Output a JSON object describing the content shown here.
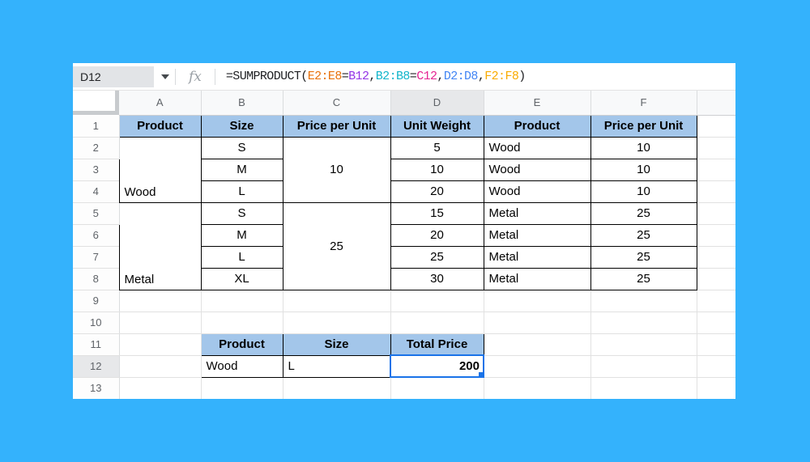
{
  "formula_bar": {
    "name_box_value": "D12",
    "fx_label": "fx",
    "formula_full": "=SUMPRODUCT(E2:E8=B12,B2:B8=C12,D2:D8,F2:F8)",
    "formula_parts": [
      {
        "text": "=SUMPRODUCT(",
        "color": "#202124"
      },
      {
        "text": "E2:E8",
        "color": "#E8710A"
      },
      {
        "text": "=",
        "color": "#202124"
      },
      {
        "text": "B12",
        "color": "#9334E6"
      },
      {
        "text": ",",
        "color": "#202124"
      },
      {
        "text": "B2:B8",
        "color": "#12B5CB"
      },
      {
        "text": "=",
        "color": "#202124"
      },
      {
        "text": "C12",
        "color": "#E52592"
      },
      {
        "text": ",",
        "color": "#202124"
      },
      {
        "text": "D2:D8",
        "color": "#4285F4"
      },
      {
        "text": ",",
        "color": "#202124"
      },
      {
        "text": "F2:F8",
        "color": "#F9AB00"
      },
      {
        "text": ")",
        "color": "#202124"
      }
    ]
  },
  "grid": {
    "column_headers": [
      "A",
      "B",
      "C",
      "D",
      "E",
      "F",
      ""
    ],
    "row_headers": [
      "1",
      "2",
      "3",
      "4",
      "5",
      "6",
      "7",
      "8",
      "9",
      "10",
      "11",
      "12",
      "13"
    ],
    "selected": {
      "cell": "D12",
      "column": "D",
      "row": "12"
    },
    "cells": {
      "A1": "Product",
      "B1": "Size",
      "C1": "Price per Unit",
      "D1": "Unit Weight",
      "E1": "Product",
      "F1": "Price per Unit",
      "A2_4": "Wood",
      "C2_4": "10",
      "B2": "S",
      "B3": "M",
      "B4": "L",
      "D2": "5",
      "D3": "10",
      "D4": "20",
      "E2": "Wood",
      "E3": "Wood",
      "E4": "Wood",
      "F2": "10",
      "F3": "10",
      "F4": "10",
      "A5_8": "Metal",
      "C5_8": "25",
      "B5": "S",
      "B6": "M",
      "B7": "L",
      "B8": "XL",
      "D5": "15",
      "D6": "20",
      "D7": "25",
      "D8": "30",
      "E5": "Metal",
      "E6": "Metal",
      "E7": "Metal",
      "E8": "Metal",
      "F5": "25",
      "F6": "25",
      "F7": "25",
      "F8": "25",
      "B11": "Product",
      "C11": "Size",
      "D11": "Total Price",
      "B12": "Wood",
      "C12": "L",
      "D12": "200"
    }
  },
  "colors": {
    "background": "#34B2FC",
    "header_fill": "#A3C6EA",
    "selection": "#1A73E8",
    "grid_line": "#E1E1E1",
    "table_border": "#000000"
  }
}
